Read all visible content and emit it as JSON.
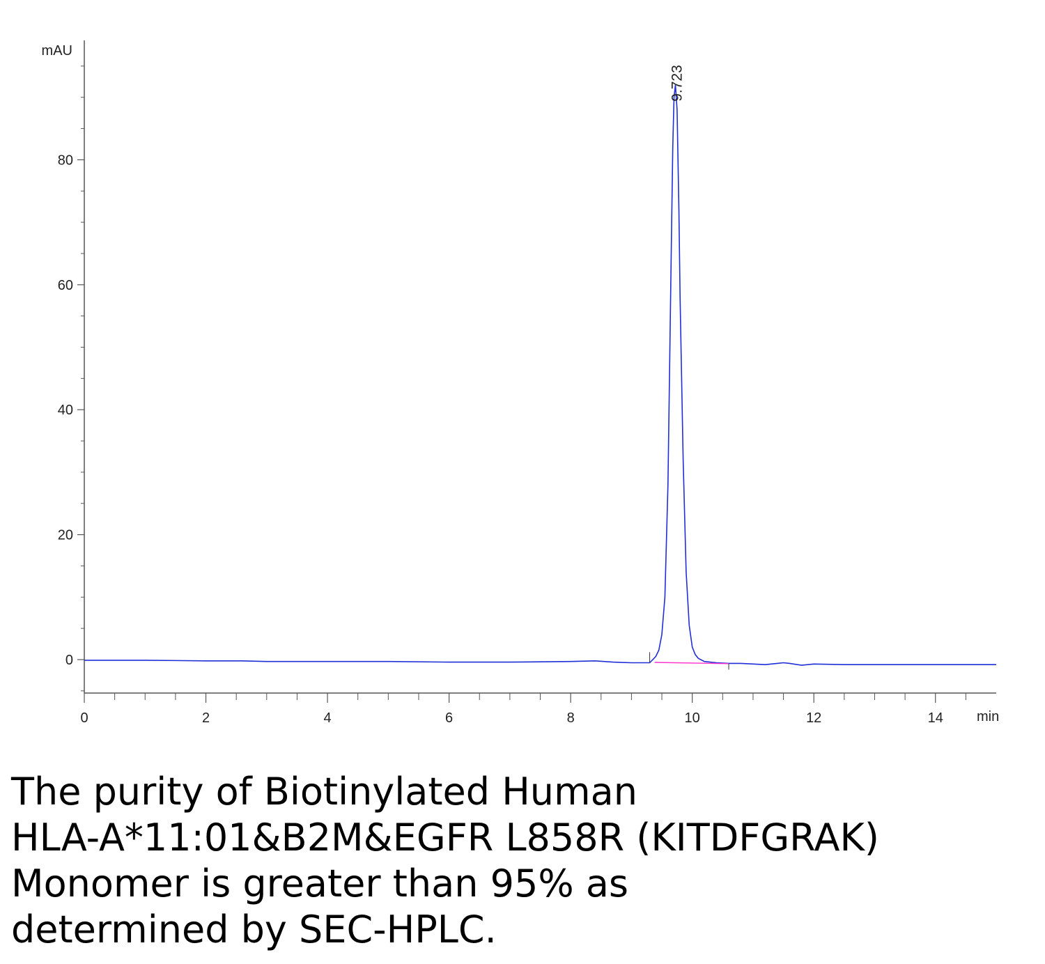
{
  "chart_data": {
    "type": "line",
    "title": "",
    "xlabel": "min",
    "ylabel": "mAU",
    "xlim": [
      0,
      15
    ],
    "ylim": [
      -5,
      98
    ],
    "x_ticks": [
      0,
      2,
      4,
      6,
      8,
      10,
      12,
      14
    ],
    "y_ticks": [
      0,
      20,
      40,
      60,
      80
    ],
    "grid": false,
    "legend": "none",
    "series": [
      {
        "color": "#1f2ed6",
        "x": [
          0,
          1,
          2,
          2.6,
          3,
          4,
          5,
          6,
          7,
          8,
          8.4,
          8.7,
          9.0,
          9.3,
          9.4,
          9.45,
          9.5,
          9.55,
          9.6,
          9.65,
          9.68,
          9.7,
          9.723,
          9.75,
          9.78,
          9.8,
          9.85,
          9.9,
          9.95,
          10.0,
          10.05,
          10.1,
          10.2,
          10.4,
          10.6,
          10.8,
          11.0,
          11.2,
          11.4,
          11.5,
          11.6,
          11.8,
          12.0,
          12.5,
          13,
          14,
          15
        ],
        "y": [
          -0.1,
          -0.1,
          -0.2,
          -0.2,
          -0.3,
          -0.3,
          -0.3,
          -0.4,
          -0.4,
          -0.3,
          -0.2,
          -0.4,
          -0.5,
          -0.5,
          0.5,
          1.5,
          4,
          10,
          28,
          62,
          82,
          90,
          92,
          88,
          72,
          58,
          32,
          14,
          5.5,
          2,
          0.8,
          0.2,
          -0.3,
          -0.5,
          -0.6,
          -0.6,
          -0.7,
          -0.8,
          -0.6,
          -0.5,
          -0.6,
          -0.9,
          -0.7,
          -0.8,
          -0.8,
          -0.8,
          -0.8
        ]
      },
      {
        "color": "#ff33cc",
        "x": [
          9.38,
          10.6
        ],
        "y": [
          -0.45,
          -0.65
        ]
      }
    ],
    "annotations": [
      {
        "text": "9.723",
        "x": 9.723,
        "y": 92
      }
    ]
  },
  "caption": {
    "lines": [
      "The purity of Biotinylated Human",
      "HLA-A*11:01&B2M&EGFR L858R (KITDFGRAK)",
      "Monomer is greater than 95% as",
      "determined by SEC-HPLC."
    ]
  }
}
